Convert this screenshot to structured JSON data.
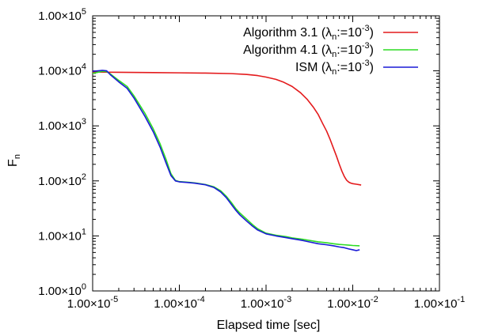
{
  "chart_data": {
    "type": "line",
    "title": "",
    "xlabel": "Elapsed time [sec]",
    "ylabel": {
      "main": "F",
      "sub": "n"
    },
    "x_scale": "log",
    "y_scale": "log",
    "xlim": [
      1e-05,
      0.1
    ],
    "ylim": [
      1,
      100000
    ],
    "grid": false,
    "legend_position": "top-right",
    "x_ticks": [
      {
        "value": 1e-05,
        "mant": "1.00×10",
        "exp": "-5"
      },
      {
        "value": 0.0001,
        "mant": "1.00×10",
        "exp": "-4"
      },
      {
        "value": 0.001,
        "mant": "1.00×10",
        "exp": "-3"
      },
      {
        "value": 0.01,
        "mant": "1.00×10",
        "exp": "-2"
      },
      {
        "value": 0.1,
        "mant": "1.00×10",
        "exp": "-1"
      }
    ],
    "y_ticks": [
      {
        "value": 1,
        "mant": "1.00×10",
        "exp": "0"
      },
      {
        "value": 10,
        "mant": "1.00×10",
        "exp": "1"
      },
      {
        "value": 100,
        "mant": "1.00×10",
        "exp": "2"
      },
      {
        "value": 1000,
        "mant": "1.00×10",
        "exp": "3"
      },
      {
        "value": 10000,
        "mant": "1.00×10",
        "exp": "4"
      },
      {
        "value": 100000,
        "mant": "1.00×10",
        "exp": "5"
      }
    ],
    "series": [
      {
        "name": "Algorithm 3.1 (λn:=10-3)",
        "legend": {
          "pre": "Algorithm 3.1 (λ",
          "sub": "n",
          "mid": ":=10",
          "sup": "-3",
          "post": ")"
        },
        "color": "#e41a1c",
        "points": [
          [
            1e-05,
            9500
          ],
          [
            2e-05,
            9400
          ],
          [
            5e-05,
            9300
          ],
          [
            0.0001,
            9200
          ],
          [
            0.0002,
            9100
          ],
          [
            0.0004,
            8900
          ],
          [
            0.0006,
            8600
          ],
          [
            0.0008,
            8200
          ],
          [
            0.001,
            7700
          ],
          [
            0.0013,
            7000
          ],
          [
            0.0016,
            6200
          ],
          [
            0.002,
            5200
          ],
          [
            0.0025,
            4000
          ],
          [
            0.003,
            3000
          ],
          [
            0.0035,
            2200
          ],
          [
            0.004,
            1600
          ],
          [
            0.0045,
            1100
          ],
          [
            0.005,
            800
          ],
          [
            0.0055,
            560
          ],
          [
            0.006,
            390
          ],
          [
            0.0065,
            280
          ],
          [
            0.007,
            200
          ],
          [
            0.0075,
            150
          ],
          [
            0.008,
            120
          ],
          [
            0.0085,
            103
          ],
          [
            0.009,
            95
          ],
          [
            0.0095,
            91
          ],
          [
            0.01,
            89
          ],
          [
            0.011,
            87
          ],
          [
            0.012,
            85
          ],
          [
            0.0125,
            84
          ]
        ]
      },
      {
        "name": "Algorithm 4.1 (λn:=10-3)",
        "legend": {
          "pre": "Algorithm 4.1 (λ",
          "sub": "n",
          "mid": ":=10",
          "sup": "-3",
          "post": ")"
        },
        "color": "#2ddc24",
        "points": [
          [
            1e-05,
            9000
          ],
          [
            1.3e-05,
            9800
          ],
          [
            1.45e-05,
            9700
          ],
          [
            1.6e-05,
            8800
          ],
          [
            2e-05,
            6700
          ],
          [
            2.5e-05,
            5200
          ],
          [
            3e-05,
            3500
          ],
          [
            4e-05,
            1700
          ],
          [
            5e-05,
            880
          ],
          [
            6e-05,
            470
          ],
          [
            7e-05,
            250
          ],
          [
            8e-05,
            135
          ],
          [
            9e-05,
            102
          ],
          [
            0.0001,
            97
          ],
          [
            0.00012,
            95
          ],
          [
            0.00015,
            92
          ],
          [
            0.0002,
            86
          ],
          [
            0.00025,
            78
          ],
          [
            0.0003,
            66
          ],
          [
            0.00035,
            52
          ],
          [
            0.0004,
            40
          ],
          [
            0.00045,
            31
          ],
          [
            0.0005,
            26
          ],
          [
            0.0006,
            20
          ],
          [
            0.0007,
            16
          ],
          [
            0.0008,
            13.5
          ],
          [
            0.001,
            11.2
          ],
          [
            0.0013,
            10.3
          ],
          [
            0.0017,
            9.7
          ],
          [
            0.002,
            9.2
          ],
          [
            0.0025,
            8.8
          ],
          [
            0.003,
            8.4
          ],
          [
            0.004,
            7.8
          ],
          [
            0.005,
            7.5
          ],
          [
            0.006,
            7.2
          ],
          [
            0.007,
            7.0
          ],
          [
            0.008,
            6.9
          ],
          [
            0.009,
            6.8
          ],
          [
            0.01,
            6.7
          ],
          [
            0.012,
            6.6
          ]
        ]
      },
      {
        "name": "ISM (λn:=10-3)",
        "legend": {
          "pre": "ISM (λ",
          "sub": "n",
          "mid": ":=10",
          "sup": "-3",
          "post": ")"
        },
        "color": "#1a1ad6",
        "points": [
          [
            1e-05,
            9800
          ],
          [
            1.3e-05,
            10200
          ],
          [
            1.45e-05,
            10000
          ],
          [
            1.6e-05,
            8500
          ],
          [
            2e-05,
            6300
          ],
          [
            2.5e-05,
            4800
          ],
          [
            3e-05,
            3200
          ],
          [
            4e-05,
            1500
          ],
          [
            5e-05,
            780
          ],
          [
            6e-05,
            410
          ],
          [
            7e-05,
            215
          ],
          [
            8e-05,
            125
          ],
          [
            9e-05,
            100
          ],
          [
            0.0001,
            96
          ],
          [
            0.00012,
            94
          ],
          [
            0.00015,
            91
          ],
          [
            0.0002,
            85
          ],
          [
            0.00025,
            76
          ],
          [
            0.0003,
            63
          ],
          [
            0.00035,
            49
          ],
          [
            0.0004,
            37
          ],
          [
            0.00045,
            29
          ],
          [
            0.0005,
            24
          ],
          [
            0.0006,
            18.5
          ],
          [
            0.0007,
            15
          ],
          [
            0.0008,
            12.8
          ],
          [
            0.001,
            10.9
          ],
          [
            0.0013,
            10.0
          ],
          [
            0.0017,
            9.3
          ],
          [
            0.002,
            8.9
          ],
          [
            0.0025,
            8.4
          ],
          [
            0.003,
            7.9
          ],
          [
            0.004,
            7.2
          ],
          [
            0.005,
            6.9
          ],
          [
            0.006,
            6.6
          ],
          [
            0.007,
            6.3
          ],
          [
            0.008,
            6.1
          ],
          [
            0.009,
            5.8
          ],
          [
            0.01,
            5.6
          ],
          [
            0.011,
            5.4
          ],
          [
            0.012,
            5.6
          ]
        ]
      }
    ]
  }
}
